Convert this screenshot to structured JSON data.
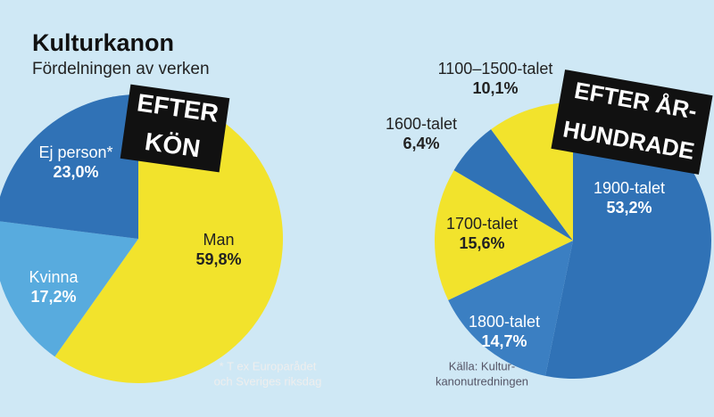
{
  "title": "Kulturkanon",
  "subtitle": "Fördelningen av verken",
  "chart_data": [
    {
      "type": "pie",
      "title_lines": [
        "EFTER",
        "KÖN"
      ],
      "categories": [
        "Man",
        "Kvinna",
        "Ej person*"
      ],
      "values": [
        59.8,
        17.2,
        23.0
      ],
      "value_labels": [
        "59,8%",
        "17,2%",
        "23,0%"
      ],
      "colors": [
        "#f4e21c",
        "#4fa6dc",
        "#2468b0"
      ],
      "footnote": [
        "* T ex Europarådet",
        "och Sveriges riksdag"
      ]
    },
    {
      "type": "pie",
      "title_lines": [
        "EFTER ÅR-",
        "HUNDRADE"
      ],
      "categories": [
        "1900-talet",
        "1800-talet",
        "1700-talet",
        "1600-talet",
        "1100–1500-talet"
      ],
      "values": [
        53.2,
        14.7,
        15.6,
        6.4,
        10.1
      ],
      "value_labels": [
        "53,2%",
        "14,7%",
        "15,6%",
        "6,4%",
        "10,1%"
      ],
      "colors": [
        "#2468b0",
        "#2f76bd",
        "#f4e21c",
        "#2468b0",
        "#f4e21c"
      ],
      "source": [
        "Källa: Kultur-",
        "kanonutredningen"
      ]
    }
  ]
}
